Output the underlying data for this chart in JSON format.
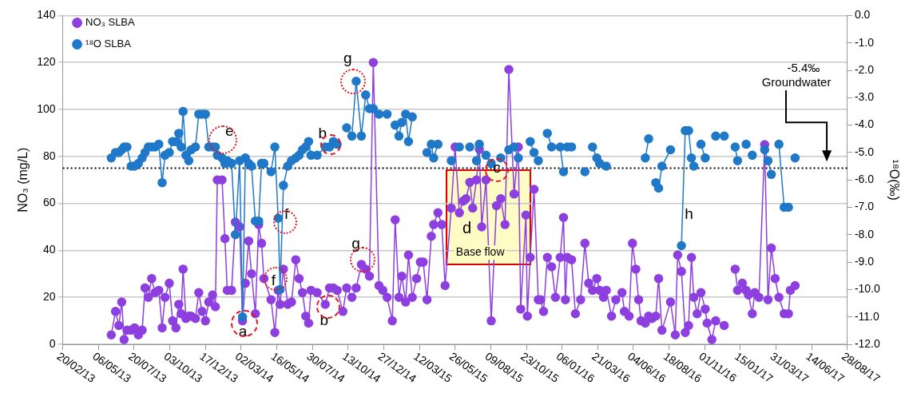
{
  "chart_data": {
    "type": "line",
    "x": [
      "2013-06-02",
      "2013-06-11",
      "2013-06-18",
      "2013-06-24",
      "2013-06-29",
      "2013-07-05",
      "2013-07-14",
      "2013-07-21",
      "2013-07-29",
      "2013-08-06",
      "2013-08-12",
      "2013-08-19",
      "2013-08-26",
      "2013-09-02",
      "2013-09-10",
      "2013-09-17",
      "2013-09-23",
      "2013-10-02",
      "2013-10-09",
      "2013-10-16",
      "2013-10-22",
      "2013-10-27",
      "2013-10-31",
      "2013-11-06",
      "2013-11-12",
      "2013-11-17",
      "2013-11-26",
      "2013-12-03",
      "2013-12-10",
      "2013-12-17",
      "2013-12-24",
      "2014-01-01",
      "2014-01-07",
      "2014-01-11",
      "2014-01-21",
      "2014-01-27",
      "2014-02-01",
      "2014-02-10",
      "2014-02-18",
      "2014-02-27",
      "2014-03-05",
      "2014-03-11",
      "2014-03-18",
      "2014-03-24",
      "2014-04-01",
      "2014-04-08",
      "2014-04-14",
      "2014-04-19",
      "2014-05-04",
      "2014-05-12",
      "2014-05-19",
      "2014-05-23",
      "2014-05-30",
      "2014-06-08",
      "2014-06-16",
      "2014-06-25",
      "2014-07-02",
      "2014-07-09",
      "2014-07-16",
      "2014-07-22",
      "2014-07-27",
      "2014-08-09",
      "2014-08-26",
      "2014-09-04",
      "2014-09-12",
      "2014-09-20",
      "2014-10-02",
      "2014-10-10",
      "2014-10-21",
      "2014-10-30",
      "2014-11-10",
      "2014-11-19",
      "2014-11-27",
      "2014-12-05",
      "2014-12-17",
      "2014-12-25",
      "2015-01-03",
      "2015-01-14",
      "2015-01-20",
      "2015-01-28",
      "2015-02-03",
      "2015-02-11",
      "2015-02-17",
      "2015-02-25",
      "2015-03-06",
      "2015-03-14",
      "2015-03-20",
      "2015-03-28",
      "2015-04-06",
      "2015-04-11",
      "2015-04-20",
      "2015-04-28",
      "2015-05-05",
      "2015-05-18",
      "2015-05-26",
      "2015-06-04",
      "2015-06-12",
      "2015-06-18",
      "2015-06-26",
      "2015-07-02",
      "2015-07-10",
      "2015-07-16",
      "2015-07-21",
      "2015-07-30",
      "2015-08-10",
      "2015-08-21",
      "2015-08-30",
      "2015-09-08",
      "2015-09-16",
      "2015-09-27",
      "2015-10-06",
      "2015-10-11",
      "2015-10-22",
      "2015-10-25",
      "2015-10-31",
      "2015-11-08",
      "2015-11-17",
      "2015-11-22",
      "2015-11-28",
      "2015-12-06",
      "2015-12-15",
      "2015-12-23",
      "2016-01-02",
      "2016-01-09",
      "2016-01-13",
      "2016-01-17",
      "2016-01-26",
      "2016-02-03",
      "2016-02-14",
      "2016-02-23",
      "2016-03-02",
      "2016-03-10",
      "2016-03-19",
      "2016-03-25",
      "2016-04-02",
      "2016-04-08",
      "2016-04-19",
      "2016-04-28",
      "2016-05-11",
      "2016-05-16",
      "2016-05-26",
      "2016-06-02",
      "2016-06-09",
      "2016-06-15",
      "2016-06-20",
      "2016-06-29",
      "2016-07-06",
      "2016-07-13",
      "2016-07-21",
      "2016-07-27",
      "2016-08-03",
      "2016-08-21",
      "2016-08-31",
      "2016-09-05",
      "2016-09-13",
      "2016-09-21",
      "2016-09-28",
      "2016-10-04",
      "2016-10-09",
      "2016-10-16",
      "2016-10-24",
      "2016-11-02",
      "2016-11-06",
      "2016-11-16",
      "2016-11-24",
      "2016-12-12",
      "2016-12-28",
      "2017-01-04",
      "2017-01-09",
      "2017-01-19",
      "2017-01-27",
      "2017-02-01",
      "2017-02-09",
      "2017-02-14",
      "2017-02-23",
      "2017-03-07",
      "2017-03-14",
      "2017-03-21",
      "2017-03-29",
      "2017-04-06",
      "2017-04-17",
      "2017-04-26",
      "2017-04-30",
      "2017-05-10"
    ],
    "series": [
      {
        "name": "NO₃ SLBA",
        "color": "#8e3fe0",
        "values": [
          4,
          14,
          8,
          18,
          2,
          6,
          6,
          7,
          4,
          6,
          24,
          20,
          28,
          22,
          23,
          7,
          20,
          26,
          10,
          7,
          17,
          13,
          32,
          11,
          12,
          12,
          11,
          22,
          14,
          10,
          18,
          21,
          16,
          70,
          70,
          45,
          23,
          23,
          52,
          50,
          10,
          26,
          44,
          30,
          13,
          51,
          43,
          28,
          19,
          5,
          23,
          17,
          32,
          17,
          18,
          36,
          28,
          22,
          12,
          9,
          23,
          22,
          17,
          24,
          24,
          23,
          14,
          24,
          20,
          24,
          34,
          32,
          29,
          120,
          25,
          23,
          20,
          10,
          53,
          20,
          29,
          18,
          38,
          20,
          28,
          35,
          35,
          19,
          46,
          51,
          56,
          51,
          25,
          58,
          84,
          56,
          61,
          62,
          69,
          58,
          70,
          83,
          50,
          70,
          10,
          59,
          62,
          51,
          117,
          64,
          84,
          15,
          55,
          12,
          37,
          66,
          19,
          19,
          14,
          37,
          33,
          20,
          37,
          54,
          19,
          37,
          36,
          13,
          19,
          43,
          26,
          23,
          28,
          23,
          20,
          23,
          12,
          19,
          22,
          14,
          12,
          43,
          32,
          19,
          10,
          9,
          12,
          11,
          12,
          28,
          6,
          18,
          4,
          38,
          31,
          5,
          8,
          37,
          20,
          13,
          22,
          15,
          9,
          2,
          10,
          8,
          null,
          32,
          23,
          26,
          23,
          21,
          13,
          22,
          20,
          85,
          19,
          41,
          28,
          20,
          13,
          13,
          23,
          25
        ]
      },
      {
        "name": "¹⁸O SLBA",
        "color": "#1f78c8",
        "axis": "y2",
        "values": [
          -5.2,
          -5.0,
          -5.0,
          -4.9,
          -4.8,
          -4.8,
          -5.5,
          -5.5,
          -5.4,
          -5.2,
          -5.0,
          -4.8,
          -4.8,
          -4.8,
          -4.7,
          -6.1,
          -5.1,
          -5.0,
          -4.6,
          -4.6,
          -4.3,
          -4.8,
          -3.5,
          -5.1,
          -5.3,
          -4.9,
          -4.8,
          -3.6,
          -3.6,
          -3.6,
          -4.8,
          -4.8,
          -4.8,
          -5.1,
          -5.2,
          -5.4,
          -5.3,
          -5.4,
          -8.0,
          -5.3,
          -11.0,
          -5.2,
          -5.4,
          -5.5,
          -7.5,
          -7.5,
          -5.4,
          -5.4,
          -5.7,
          -4.8,
          -7.4,
          -10.0,
          -6.2,
          -5.5,
          -5.3,
          -5.2,
          -5.1,
          -4.9,
          -4.8,
          -4.6,
          -5.1,
          -5.1,
          -4.8,
          -4.8,
          -4.6,
          -4.7,
          null,
          -4.1,
          -4.4,
          -2.4,
          -4.4,
          -2.9,
          -3.4,
          -3.4,
          -3.6,
          null,
          -3.6,
          null,
          -4.0,
          -4.4,
          -3.9,
          -3.6,
          -4.6,
          -3.7,
          null,
          null,
          null,
          -5.0,
          -4.7,
          -5.2,
          -4.7,
          null,
          null,
          -5.3,
          null,
          -4.8,
          null,
          null,
          -4.8,
          null,
          -5.3,
          -4.7,
          null,
          -5.1,
          -5.4,
          null,
          -5.2,
          null,
          -4.9,
          -4.8,
          -5.2,
          null,
          null,
          null,
          -4.6,
          -5.0,
          -5.3,
          null,
          null,
          -4.3,
          -4.8,
          null,
          -4.8,
          -5.7,
          null,
          -4.8,
          -4.8,
          null,
          null,
          -5.7,
          null,
          -4.8,
          -5.2,
          -5.4,
          null,
          -5.5,
          null,
          null,
          null,
          null,
          null,
          null,
          null,
          null,
          null,
          -5.2,
          -4.5,
          null,
          -6.1,
          -6.3,
          -5.5,
          -4.9,
          null,
          null,
          -8.4,
          -4.2,
          -4.2,
          -5.2,
          -5.5,
          null,
          -4.7,
          -5.2,
          null,
          null,
          -4.4,
          -4.4,
          null,
          -4.8,
          -5.3,
          null,
          -4.7,
          null,
          -5.1,
          null,
          null,
          -4.9,
          -5.3,
          -5.8,
          null,
          -4.7,
          -7.0,
          -7.0,
          null,
          -5.2
        ]
      }
    ],
    "marker": "circle",
    "xlim": [
      "2013-02-20",
      "2017-08-28"
    ],
    "xticks": [
      {
        "value": "2013-02-20",
        "label": "20/02/13"
      },
      {
        "value": "2013-05-06",
        "label": "06/05/13"
      },
      {
        "value": "2013-07-20",
        "label": "20/07/13"
      },
      {
        "value": "2013-10-03",
        "label": "03/10/13"
      },
      {
        "value": "2013-12-17",
        "label": "17/12/13"
      },
      {
        "value": "2014-03-02",
        "label": "02/03/14"
      },
      {
        "value": "2014-05-16",
        "label": "16/05/14"
      },
      {
        "value": "2014-07-30",
        "label": "30/07/14"
      },
      {
        "value": "2014-10-13",
        "label": "13/10/14"
      },
      {
        "value": "2014-12-27",
        "label": "27/12/14"
      },
      {
        "value": "2015-03-12",
        "label": "12/03/15"
      },
      {
        "value": "2015-05-26",
        "label": "26/05/15"
      },
      {
        "value": "2015-08-09",
        "label": "09/08/15"
      },
      {
        "value": "2015-10-23",
        "label": "23/10/15"
      },
      {
        "value": "2016-01-06",
        "label": "06/01/16"
      },
      {
        "value": "2016-03-21",
        "label": "21/03/16"
      },
      {
        "value": "2016-06-04",
        "label": "04/06/16"
      },
      {
        "value": "2016-08-18",
        "label": "18/08/16"
      },
      {
        "value": "2016-11-01",
        "label": "01/11/16"
      },
      {
        "value": "2017-01-15",
        "label": "15/01/17"
      },
      {
        "value": "2017-03-31",
        "label": "31/03/17"
      },
      {
        "value": "2017-06-14",
        "label": "14/06/17"
      },
      {
        "value": "2017-08-28",
        "label": "28/08/17"
      }
    ],
    "ylim": [
      0,
      140
    ],
    "yticks": [
      0,
      20,
      40,
      60,
      80,
      100,
      120,
      140
    ],
    "y2lim": [
      -12,
      0
    ],
    "y2ticks": [
      {
        "value": 0,
        "label": "0.0"
      },
      {
        "value": -1,
        "label": "-1.0"
      },
      {
        "value": -2,
        "label": "-2.0"
      },
      {
        "value": -3,
        "label": "-3.0"
      },
      {
        "value": -4,
        "label": "-4.0"
      },
      {
        "value": -5,
        "label": "-5.0"
      },
      {
        "value": -6,
        "label": "-6.0"
      },
      {
        "value": -7,
        "label": "-7.0"
      },
      {
        "value": -8,
        "label": "-8.0"
      },
      {
        "value": -9,
        "label": "-9.0"
      },
      {
        "value": -10,
        "label": "-10.0"
      },
      {
        "value": -11,
        "label": "-11.0"
      },
      {
        "value": -12,
        "label": "-12.0"
      }
    ],
    "ylabel": "NO₃ (mg/L)",
    "y2label": "¹⁸O(‰)",
    "grid": "y",
    "legend": "top left",
    "ref_lines": [
      {
        "axis": "y",
        "value": 75,
        "line_style": "dotted",
        "color": "#000000"
      }
    ],
    "annotations": [
      {
        "text": "a",
        "x": "2014-03-09",
        "y": 9
      },
      {
        "text": "b",
        "x": "2014-09-06",
        "y": 85
      },
      {
        "text": "b",
        "x": "2014-09-01",
        "y": 16
      },
      {
        "text": "c",
        "x": "2015-08-22",
        "y": 74
      },
      {
        "text": "e",
        "x": "2014-01-23",
        "y": 87
      },
      {
        "text": "f",
        "x": "2014-06-02",
        "y": 52
      },
      {
        "text": "f",
        "x": "2014-05-14",
        "y": 28
      },
      {
        "text": "g",
        "x": "2014-10-24",
        "y": 112
      },
      {
        "text": "g",
        "x": "2014-11-12",
        "y": 36
      },
      "d",
      "Base flow",
      "h",
      "-5.4‰",
      "Groundwater"
    ]
  }
}
